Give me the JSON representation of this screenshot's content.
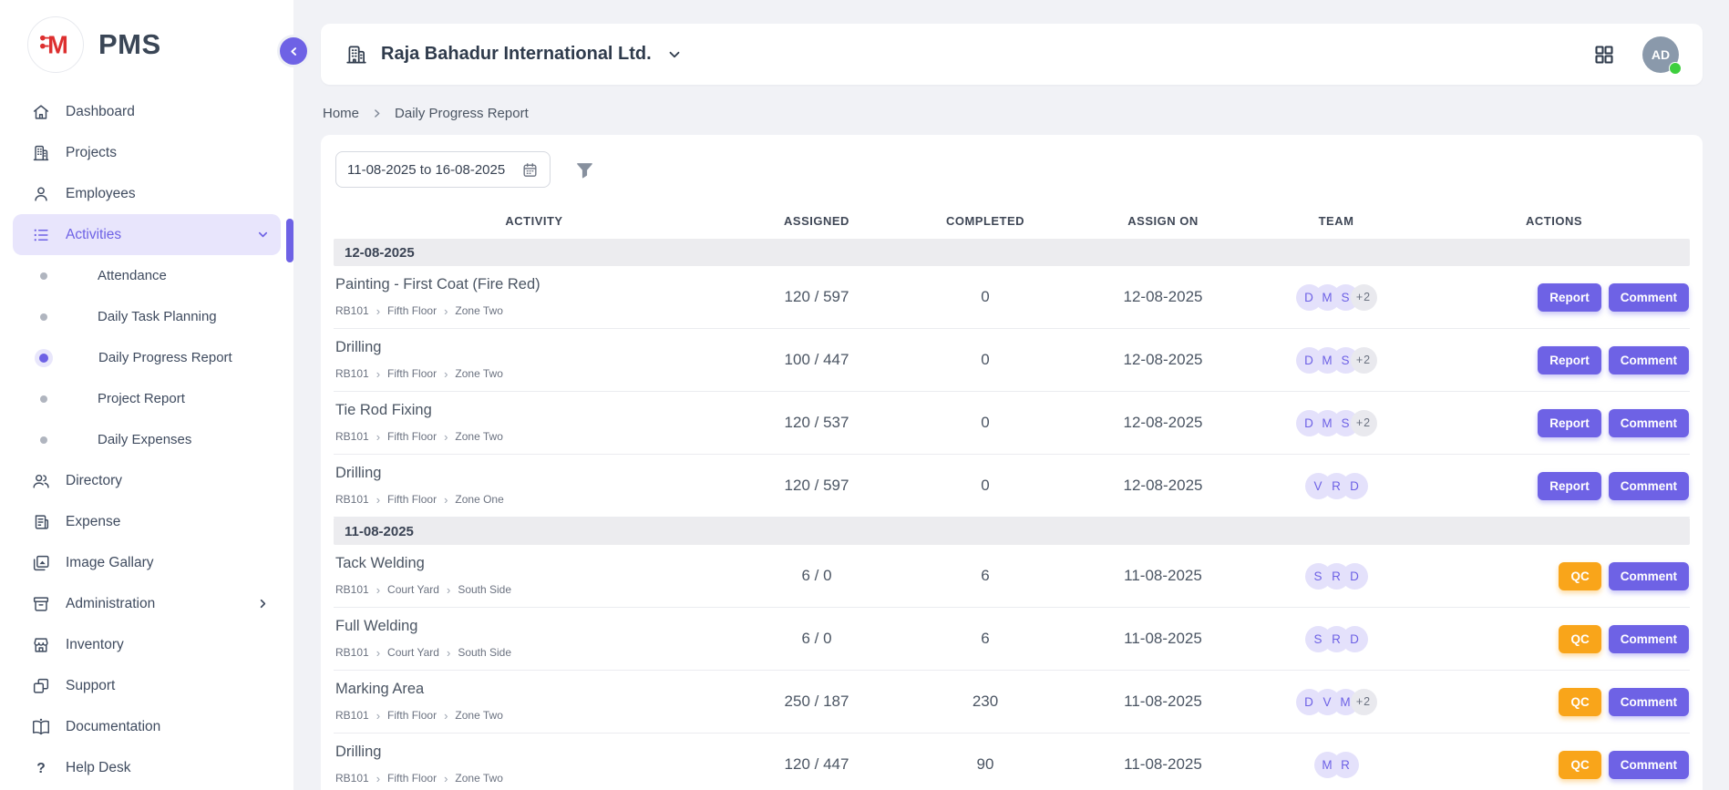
{
  "app": {
    "name": "PMS",
    "logo_letter": "M"
  },
  "header": {
    "company": "Raja Bahadur International Ltd.",
    "avatar_initials": "AD"
  },
  "sidebar": {
    "items": [
      {
        "label": "Dashboard",
        "icon": "home"
      },
      {
        "label": "Projects",
        "icon": "building"
      },
      {
        "label": "Employees",
        "icon": "person"
      },
      {
        "label": "Activities",
        "icon": "list",
        "active": true,
        "chevron": "down"
      },
      {
        "label": "Attendance",
        "type": "sub"
      },
      {
        "label": "Daily Task Planning",
        "type": "sub"
      },
      {
        "label": "Daily Progress Report",
        "type": "sub",
        "active": true
      },
      {
        "label": "Project Report",
        "type": "sub"
      },
      {
        "label": "Daily Expenses",
        "type": "sub"
      },
      {
        "label": "Directory",
        "icon": "people"
      },
      {
        "label": "Expense",
        "icon": "receipt"
      },
      {
        "label": "Image Gallary",
        "icon": "gallery"
      },
      {
        "label": "Administration",
        "icon": "archive",
        "chevron": "right"
      },
      {
        "label": "Inventory",
        "icon": "store"
      },
      {
        "label": "Support",
        "icon": "squares"
      },
      {
        "label": "Documentation",
        "icon": "book"
      },
      {
        "label": "Help Desk",
        "icon": "question"
      }
    ]
  },
  "breadcrumb": {
    "home": "Home",
    "current": "Daily Progress Report"
  },
  "filters": {
    "date_range": "11-08-2025 to 16-08-2025"
  },
  "table": {
    "columns": [
      "ACTIVITY",
      "ASSIGNED",
      "COMPLETED",
      "ASSIGN ON",
      "TEAM",
      "ACTIONS"
    ],
    "groups": [
      {
        "date": "12-08-2025",
        "rows": [
          {
            "activity": "Painting - First Coat (Fire Red)",
            "path": [
              "RB101",
              "Fifth Floor",
              "Zone Two"
            ],
            "assigned": "120 / 597",
            "completed": "0",
            "assign_on": "12-08-2025",
            "team": [
              "D",
              "M",
              "S",
              "+2"
            ],
            "actions": [
              {
                "label": "Report",
                "style": "primary"
              },
              {
                "label": "Comment",
                "style": "primary"
              }
            ]
          },
          {
            "activity": "Drilling",
            "path": [
              "RB101",
              "Fifth Floor",
              "Zone Two"
            ],
            "assigned": "100 / 447",
            "completed": "0",
            "assign_on": "12-08-2025",
            "team": [
              "D",
              "M",
              "S",
              "+2"
            ],
            "actions": [
              {
                "label": "Report",
                "style": "primary"
              },
              {
                "label": "Comment",
                "style": "primary"
              }
            ]
          },
          {
            "activity": "Tie Rod Fixing",
            "path": [
              "RB101",
              "Fifth Floor",
              "Zone Two"
            ],
            "assigned": "120 / 537",
            "completed": "0",
            "assign_on": "12-08-2025",
            "team": [
              "D",
              "M",
              "S",
              "+2"
            ],
            "actions": [
              {
                "label": "Report",
                "style": "primary"
              },
              {
                "label": "Comment",
                "style": "primary"
              }
            ]
          },
          {
            "activity": "Drilling",
            "path": [
              "RB101",
              "Fifth Floor",
              "Zone One"
            ],
            "assigned": "120 / 597",
            "completed": "0",
            "assign_on": "12-08-2025",
            "team": [
              "V",
              "R",
              "D"
            ],
            "actions": [
              {
                "label": "Report",
                "style": "primary"
              },
              {
                "label": "Comment",
                "style": "primary"
              }
            ]
          }
        ]
      },
      {
        "date": "11-08-2025",
        "rows": [
          {
            "activity": "Tack Welding",
            "path": [
              "RB101",
              "Court Yard",
              "South Side"
            ],
            "assigned": "6 / 0",
            "completed": "6",
            "assign_on": "11-08-2025",
            "team": [
              "S",
              "R",
              "D"
            ],
            "actions": [
              {
                "label": "QC",
                "style": "warning"
              },
              {
                "label": "Comment",
                "style": "primary"
              }
            ]
          },
          {
            "activity": "Full Welding",
            "path": [
              "RB101",
              "Court Yard",
              "South Side"
            ],
            "assigned": "6 / 0",
            "completed": "6",
            "assign_on": "11-08-2025",
            "team": [
              "S",
              "R",
              "D"
            ],
            "actions": [
              {
                "label": "QC",
                "style": "warning"
              },
              {
                "label": "Comment",
                "style": "primary"
              }
            ]
          },
          {
            "activity": "Marking Area",
            "path": [
              "RB101",
              "Fifth Floor",
              "Zone Two"
            ],
            "assigned": "250 / 187",
            "completed": "230",
            "assign_on": "11-08-2025",
            "team": [
              "D",
              "V",
              "M",
              "+2"
            ],
            "actions": [
              {
                "label": "QC",
                "style": "warning"
              },
              {
                "label": "Comment",
                "style": "primary"
              }
            ]
          },
          {
            "activity": "Drilling",
            "path": [
              "RB101",
              "Fifth Floor",
              "Zone Two"
            ],
            "assigned": "120 / 447",
            "completed": "90",
            "assign_on": "11-08-2025",
            "team": [
              "M",
              "R"
            ],
            "actions": [
              {
                "label": "QC",
                "style": "warning"
              },
              {
                "label": "Comment",
                "style": "primary"
              }
            ]
          }
        ]
      }
    ]
  },
  "colors": {
    "accent": "#6e62e5",
    "accent_light": "#e8e5fc",
    "warning": "#f9a51a",
    "badge_bg": "#e4e1fb",
    "badge_extra_bg": "#e9e9ee",
    "avatar_bg": "#8a99ab",
    "online_green": "#3ecf3e",
    "logo_red": "#dd2f2f",
    "page_bg": "#f1f2f6"
  }
}
